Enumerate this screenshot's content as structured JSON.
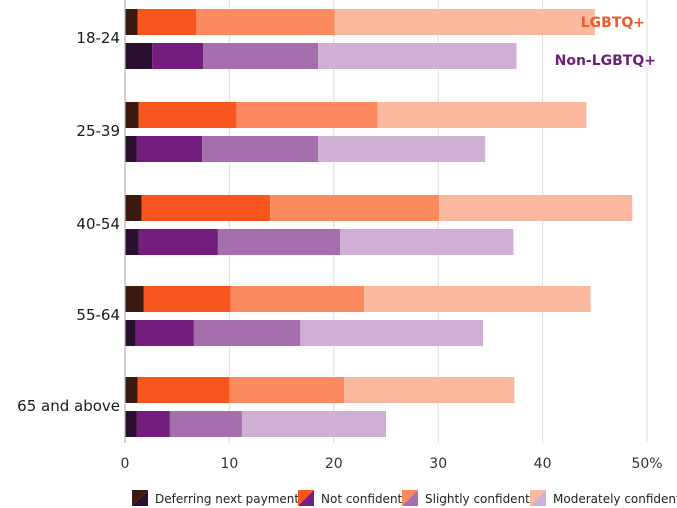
{
  "chart_data": {
    "type": "bar",
    "orientation": "horizontal",
    "stacked": true,
    "categories": [
      "18-24",
      "25-39",
      "40-54",
      "55-64",
      "65 and above"
    ],
    "groups": [
      {
        "name": "LGBTQ+",
        "label_color": "#f05a28",
        "colors": [
          "#3d1a10",
          "#f9561f",
          "#fb8a5e",
          "#fbb9a0"
        ],
        "segments": [
          [
            1.2,
            5.6,
            13.3,
            24.9
          ],
          [
            1.3,
            9.4,
            13.5,
            20.0
          ],
          [
            1.6,
            12.3,
            16.2,
            18.5
          ],
          [
            1.8,
            8.3,
            12.8,
            21.7
          ],
          [
            1.2,
            8.8,
            11.0,
            16.3
          ]
        ]
      },
      {
        "name": "Non-LGBTQ+",
        "label_color": "#6d1f7a",
        "colors": [
          "#2a0f2e",
          "#731d7e",
          "#a56fae",
          "#cfafd3"
        ],
        "segments": [
          [
            2.6,
            4.9,
            11.0,
            19.0
          ],
          [
            1.1,
            6.3,
            11.1,
            16.0
          ],
          [
            1.3,
            7.6,
            11.7,
            16.6
          ],
          [
            1.0,
            5.6,
            10.2,
            17.5
          ],
          [
            1.1,
            3.2,
            6.9,
            13.8
          ]
        ]
      }
    ],
    "xlim": [
      0,
      50
    ],
    "xticks": [
      0,
      10,
      20,
      30,
      40,
      50
    ],
    "xtick_labels": [
      "0",
      "10",
      "20",
      "30",
      "40",
      "50%"
    ],
    "grid": true,
    "legend": {
      "placement": "bottom",
      "entries": [
        "Deferring next payment",
        "Not confident",
        "Slightly confident",
        "Moderately confident"
      ]
    }
  }
}
